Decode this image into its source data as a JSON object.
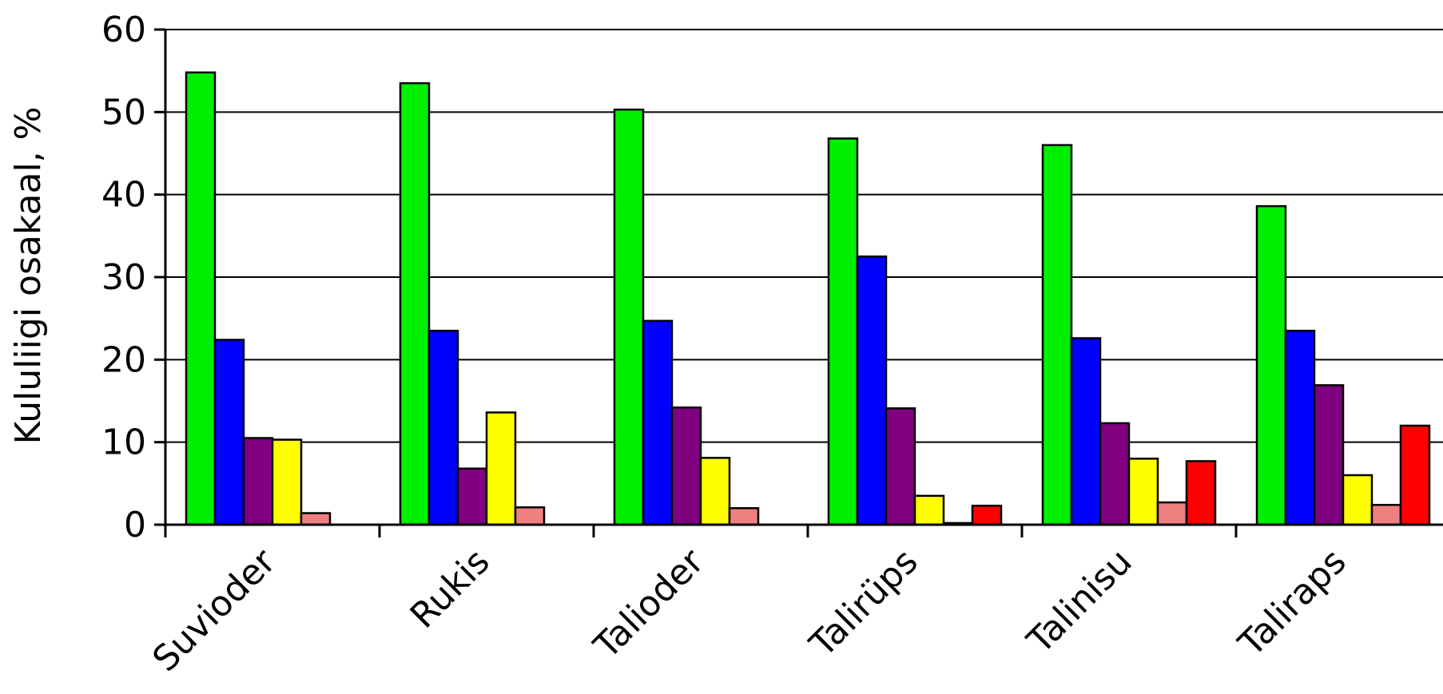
{
  "chart_data": {
    "type": "bar",
    "title": "",
    "xlabel": "",
    "ylabel": "Kululiigi osakaal, %",
    "ylim": [
      0,
      60
    ],
    "yticks": [
      0,
      10,
      20,
      30,
      40,
      50,
      60
    ],
    "grid": true,
    "categories": [
      "Suvioder",
      "Rukis",
      "Talioder",
      "Talirüps",
      "Talinisu",
      "Taliraps"
    ],
    "series": [
      {
        "color": "#00ee00",
        "values": [
          54.8,
          53.5,
          50.3,
          46.8,
          46.0,
          38.6
        ]
      },
      {
        "color": "#0000ff",
        "values": [
          22.4,
          23.5,
          24.7,
          32.5,
          22.6,
          23.5
        ]
      },
      {
        "color": "#800080",
        "values": [
          10.5,
          6.8,
          14.2,
          14.1,
          12.3,
          16.9
        ]
      },
      {
        "color": "#ffff00",
        "values": [
          10.3,
          13.6,
          8.1,
          3.5,
          8.0,
          6.0
        ]
      },
      {
        "color": "#f08080",
        "values": [
          1.4,
          2.1,
          2.0,
          0.2,
          2.7,
          2.4
        ]
      },
      {
        "color": "#ff0000",
        "values": [
          0,
          0,
          0,
          2.3,
          7.7,
          12.0
        ]
      }
    ]
  }
}
